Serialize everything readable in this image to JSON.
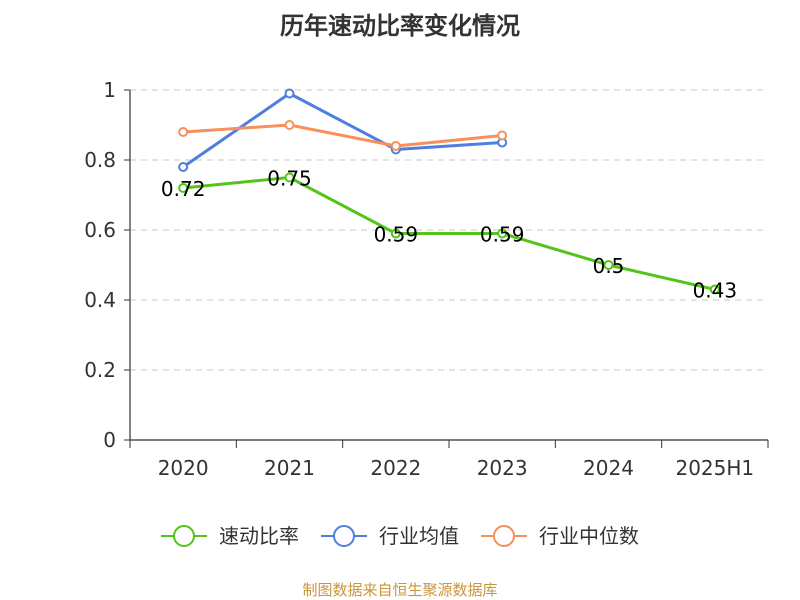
{
  "chart_data": {
    "type": "line",
    "title": "历年速动比率变化情况",
    "categories": [
      "2020",
      "2021",
      "2022",
      "2023",
      "2024",
      "2025H1"
    ],
    "ylim": [
      0,
      1
    ],
    "yticks": [
      0,
      0.2,
      0.4,
      0.6,
      0.8,
      1
    ],
    "ytick_labels": [
      "0",
      "0.2",
      "0.4",
      "0.6",
      "0.8",
      "1"
    ],
    "grid": true,
    "legend_position": "bottom",
    "series": [
      {
        "name": "速动比率",
        "color": "#52c41a",
        "values": [
          0.72,
          0.75,
          0.59,
          0.59,
          0.5,
          0.43
        ],
        "labels": [
          "0.72",
          "0.75",
          "0.59",
          "0.59",
          "0.5",
          "0.43"
        ],
        "show_labels": true
      },
      {
        "name": "行业均值",
        "color": "#4e7fe0",
        "values": [
          0.78,
          0.99,
          0.83,
          0.85,
          null,
          null
        ],
        "show_labels": false
      },
      {
        "name": "行业中位数",
        "color": "#f7905a",
        "values": [
          0.88,
          0.9,
          0.84,
          0.87,
          null,
          null
        ],
        "show_labels": false
      }
    ],
    "source": "制图数据来自恒生聚源数据库"
  }
}
